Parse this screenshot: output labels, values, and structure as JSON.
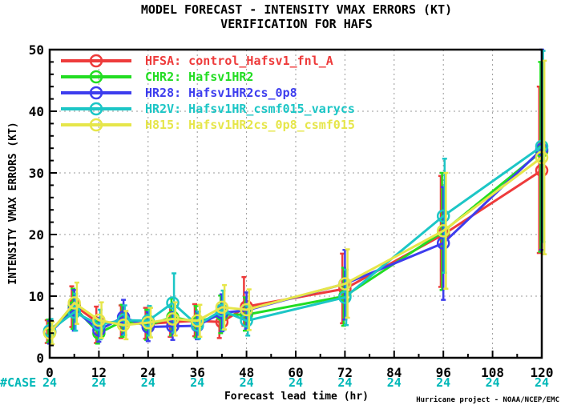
{
  "chart_data": {
    "type": "line",
    "title": "MODEL FORECAST - INTENSITY VMAX ERRORS (KT)",
    "subtitle": "VERIFICATION FOR HAFS",
    "xlabel": "Forecast lead time (hr)",
    "ylabel": "INTENSITY VMAX ERRORS (KT)",
    "xlim": [
      0,
      120
    ],
    "ylim": [
      0,
      50
    ],
    "xticks": [
      "0",
      "12",
      "24",
      "36",
      "48",
      "60",
      "72",
      "84",
      "96",
      "108",
      "120"
    ],
    "yticks": [
      "0",
      "10",
      "20",
      "30",
      "40",
      "50"
    ],
    "grid": true,
    "legend_position": "top-left",
    "case_label": "#CASE",
    "case_color": "#00b8b8",
    "case_counts": [
      "24",
      "24",
      "24",
      "24",
      "24",
      "24",
      "24",
      "24",
      "24",
      "24",
      "24"
    ],
    "credit": "Hurricane project - NOAA/NCEP/EMC",
    "x": [
      0,
      6,
      12,
      18,
      24,
      30,
      36,
      42,
      48,
      72,
      96,
      120
    ],
    "series": [
      {
        "name": "HFSA: control_Hafsv1_fnl_A",
        "color": "#ee3b3b",
        "values": [
          4.2,
          8.5,
          5.6,
          5.9,
          5.5,
          5.8,
          6.0,
          5.8,
          8.3,
          11.2,
          20.0,
          30.4
        ],
        "err_low": [
          2.4,
          5.0,
          2.4,
          3.2,
          3.1,
          3.4,
          3.5,
          3.2,
          5.2,
          5.6,
          11.5,
          17.0
        ],
        "err_high": [
          6.1,
          11.6,
          8.3,
          8.5,
          8.1,
          8.4,
          8.7,
          8.5,
          13.1,
          16.9,
          29.5,
          44.0
        ]
      },
      {
        "name": "CHR2: Hafsv1HR2",
        "color": "#22dd22",
        "values": [
          4.3,
          8.2,
          4.0,
          6.0,
          5.3,
          6.6,
          5.8,
          7.0,
          7.0,
          10.0,
          20.5,
          33.5
        ],
        "err_low": [
          2.5,
          4.7,
          2.3,
          3.4,
          2.9,
          3.6,
          3.3,
          4.0,
          4.4,
          5.2,
          11.0,
          17.2
        ],
        "err_high": [
          6.2,
          11.2,
          5.9,
          8.6,
          7.8,
          9.6,
          8.4,
          10.1,
          9.8,
          14.6,
          30.0,
          48.0
        ]
      },
      {
        "name": "HR28: Hafsv1HR2cs_0p8",
        "color": "#3d3dee",
        "values": [
          4.1,
          7.8,
          4.5,
          6.6,
          5.0,
          5.1,
          5.2,
          7.3,
          7.7,
          12.0,
          18.6,
          33.8
        ],
        "err_low": [
          2.3,
          4.4,
          2.6,
          3.8,
          2.7,
          2.9,
          3.0,
          4.3,
          4.7,
          6.2,
          9.4,
          17.5
        ],
        "err_high": [
          6.0,
          11.0,
          6.4,
          9.4,
          7.4,
          7.4,
          7.5,
          10.3,
          10.6,
          17.5,
          27.7,
          50.0
        ]
      },
      {
        "name": "HR2V: Hafsv1HR_csmf015_varycs",
        "color": "#1cc6c6",
        "values": [
          4.4,
          7.4,
          5.4,
          6.1,
          6.0,
          8.9,
          5.3,
          7.7,
          6.0,
          9.8,
          23.0,
          34.3
        ],
        "err_low": [
          2.5,
          4.4,
          3.0,
          3.7,
          3.6,
          4.1,
          3.1,
          4.5,
          3.6,
          5.3,
          13.8,
          18.8
        ],
        "err_high": [
          6.3,
          10.4,
          7.8,
          8.5,
          8.4,
          13.7,
          7.5,
          10.9,
          8.4,
          14.3,
          32.3,
          49.8
        ]
      },
      {
        "name": "H815: Hafsv1HR2cs_0p8_csmf015",
        "color": "#e6e64a",
        "values": [
          4.0,
          8.9,
          6.1,
          5.3,
          5.7,
          6.3,
          6.0,
          8.2,
          7.8,
          12.0,
          20.6,
          32.5
        ],
        "err_low": [
          2.2,
          5.5,
          3.2,
          3.0,
          3.3,
          3.6,
          3.4,
          4.6,
          4.5,
          6.5,
          11.2,
          16.8
        ],
        "err_high": [
          5.8,
          12.2,
          9.0,
          7.6,
          8.1,
          9.0,
          8.6,
          11.8,
          11.1,
          17.6,
          30.0,
          48.2
        ]
      }
    ]
  }
}
